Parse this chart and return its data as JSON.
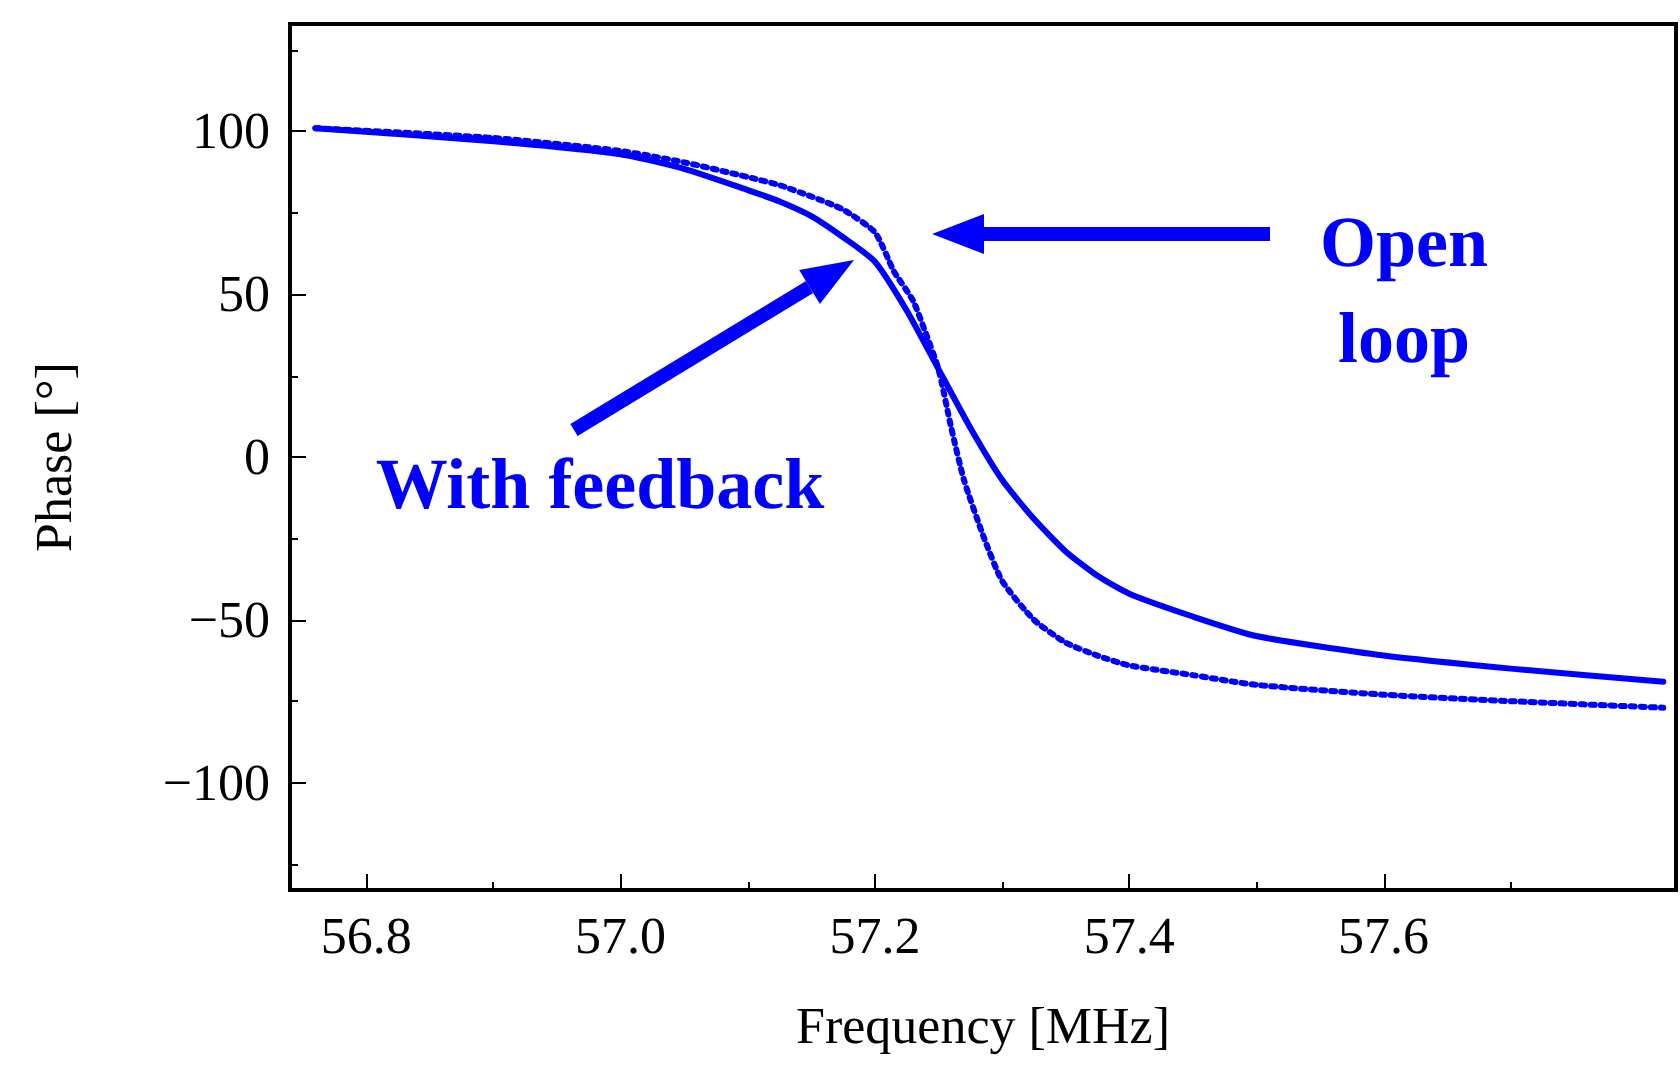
{
  "chart_data": {
    "type": "line",
    "xlabel": "Frequency [MHz]",
    "ylabel": "Phase [°]",
    "xlim": [
      56.74,
      57.83
    ],
    "xticks": [
      {
        "value": 56.8,
        "label": "56.8"
      },
      {
        "value": 57.0,
        "label": "57.0"
      },
      {
        "value": 57.2,
        "label": "57.2"
      },
      {
        "value": 57.4,
        "label": "57.4"
      },
      {
        "value": 57.6,
        "label": "57.6"
      }
    ],
    "ylim": [
      -133,
      133
    ],
    "yticks": [
      {
        "value": -100,
        "label": "−100"
      },
      {
        "value": -50,
        "label": "−50"
      },
      0,
      50,
      100
    ],
    "grid": false,
    "series": [
      {
        "color": "#0000ff",
        "line_style": "solid",
        "x": [
          56.76,
          56.9,
          57.0,
          57.05,
          57.1,
          57.125,
          57.15,
          57.175,
          57.2,
          57.225,
          57.25,
          57.275,
          57.3,
          57.325,
          57.35,
          57.375,
          57.4,
          57.45,
          57.5,
          57.6,
          57.7,
          57.82
        ],
        "values": [
          101,
          97,
          93,
          88.5,
          82,
          78.5,
          74,
          67.5,
          60,
          45,
          27,
          9,
          -7,
          -19,
          -29,
          -36.5,
          -42,
          -49,
          -55,
          -61,
          -65,
          -69
        ]
      },
      {
        "color": "#0000ff",
        "line_style": "dotted",
        "x": [
          56.76,
          56.9,
          57.0,
          57.05,
          57.1,
          57.125,
          57.15,
          57.175,
          57.2,
          57.215,
          57.23,
          57.24,
          57.25,
          57.26,
          57.27,
          57.285,
          57.3,
          57.325,
          57.35,
          57.375,
          57.4,
          57.45,
          57.5,
          57.6,
          57.7,
          57.82
        ],
        "values": [
          101,
          98,
          94,
          90.5,
          86,
          83.5,
          80,
          76,
          69,
          57,
          48,
          38,
          27,
          9,
          -7,
          -24,
          -38,
          -50,
          -57,
          -61,
          -64,
          -67,
          -70,
          -73,
          -75,
          -77
        ]
      }
    ],
    "annotations": [
      "With feedback",
      "Open\nloop"
    ]
  }
}
